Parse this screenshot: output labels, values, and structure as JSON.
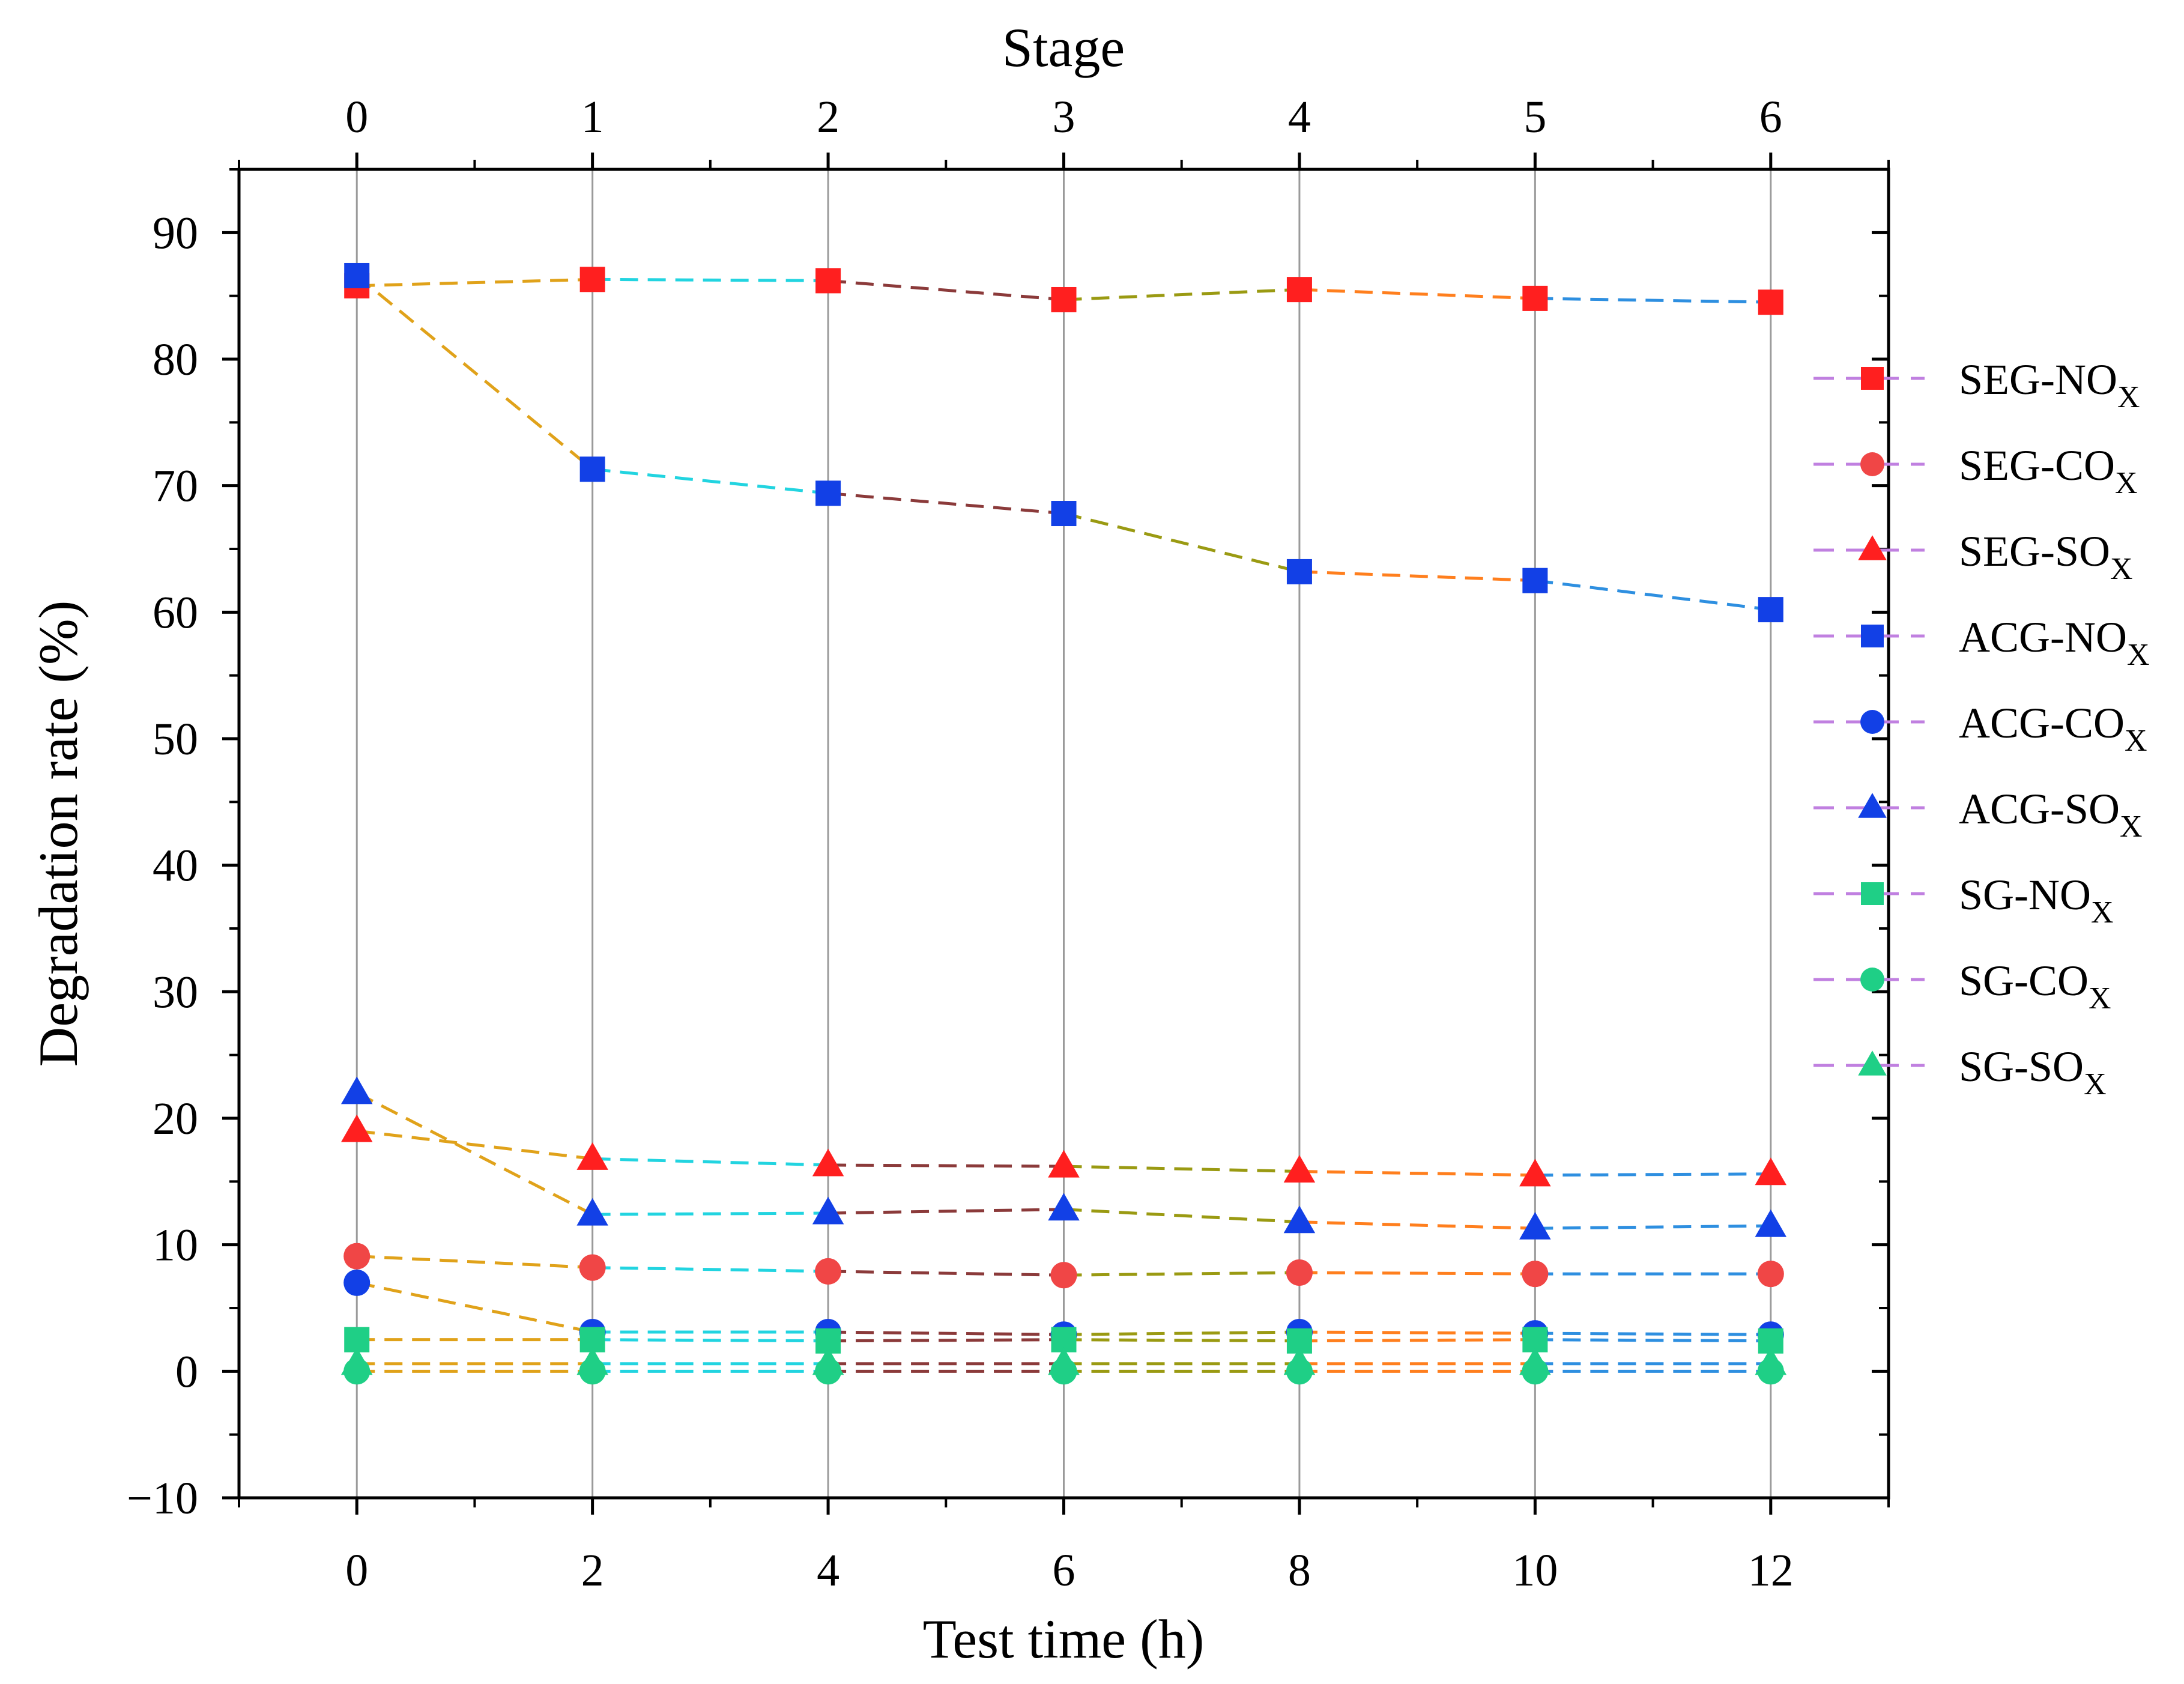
{
  "chart_data": {
    "type": "line",
    "title": "",
    "xlabel": "Test time (h)",
    "ylabel": "Degradation rate (%)",
    "top_axis_label": "Stage",
    "xlim": [
      -1,
      13
    ],
    "ylim": [
      -10,
      95
    ],
    "x": [
      0,
      2,
      4,
      6,
      8,
      10,
      12
    ],
    "x_tick_labels": [
      "0",
      "2",
      "4",
      "6",
      "8",
      "10",
      "12"
    ],
    "top_tick_labels": [
      "0",
      "1",
      "2",
      "3",
      "4",
      "5",
      "6"
    ],
    "y_tick_labels": [
      "−10",
      "0",
      "10",
      "20",
      "30",
      "40",
      "50",
      "60",
      "70",
      "80",
      "90"
    ],
    "y_tick_values": [
      -10,
      0,
      10,
      20,
      30,
      40,
      50,
      60,
      70,
      80,
      90
    ],
    "grid": "vertical at each test time",
    "legend_position": "right",
    "segment_colors": [
      "#e0a21a",
      "#22d4e0",
      "#8b3a3a",
      "#9a9a12",
      "#ff7f1e",
      "#2e8fe0"
    ],
    "legend_line_color": "#c080e0",
    "series": [
      {
        "name": "SEG-NO",
        "sub": "X",
        "marker": "square",
        "color": "#ff1f1f",
        "values": [
          85.8,
          86.3,
          86.2,
          84.7,
          85.5,
          84.8,
          84.5
        ]
      },
      {
        "name": "SEG-CO",
        "sub": "X",
        "marker": "circle",
        "color": "#f04646",
        "values": [
          9.1,
          8.2,
          7.9,
          7.6,
          7.8,
          7.7,
          7.7
        ]
      },
      {
        "name": "SEG-SO",
        "sub": "X",
        "marker": "triangle",
        "color": "#ff1f1f",
        "values": [
          19.0,
          16.8,
          16.3,
          16.2,
          15.8,
          15.5,
          15.6
        ]
      },
      {
        "name": "ACG-NO",
        "sub": "X",
        "marker": "square",
        "color": "#1240e6",
        "values": [
          86.6,
          71.3,
          69.4,
          67.8,
          63.2,
          62.5,
          60.2
        ]
      },
      {
        "name": "ACG-CO",
        "sub": "X",
        "marker": "circle",
        "color": "#1240e6",
        "values": [
          7.0,
          3.1,
          3.1,
          2.9,
          3.1,
          3.0,
          2.9
        ]
      },
      {
        "name": "ACG-SO",
        "sub": "X",
        "marker": "triangle",
        "color": "#1240e6",
        "values": [
          22.0,
          12.4,
          12.5,
          12.8,
          11.8,
          11.3,
          11.5
        ]
      },
      {
        "name": "SG-NO",
        "sub": "X",
        "marker": "square",
        "color": "#1fcf86",
        "values": [
          2.5,
          2.5,
          2.4,
          2.5,
          2.4,
          2.5,
          2.4
        ]
      },
      {
        "name": "SG-CO",
        "sub": "X",
        "marker": "circle",
        "color": "#1fcf86",
        "values": [
          0.0,
          0.0,
          0.0,
          0.0,
          0.0,
          0.0,
          0.0
        ]
      },
      {
        "name": "SG-SO",
        "sub": "X",
        "marker": "triangle",
        "color": "#1fcf86",
        "values": [
          0.6,
          0.6,
          0.6,
          0.6,
          0.6,
          0.6,
          0.6
        ]
      }
    ]
  }
}
